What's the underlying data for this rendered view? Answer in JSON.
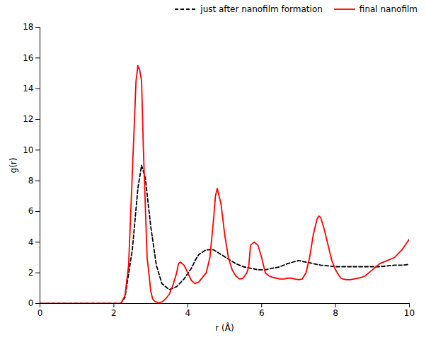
{
  "chart_data": {
    "type": "line",
    "xlabel": "r (Å)",
    "ylabel": "g(r)",
    "xlim": [
      0,
      10
    ],
    "ylim": [
      0,
      18
    ],
    "xticks": [
      0,
      2,
      4,
      6,
      8,
      10
    ],
    "yticks": [
      0,
      2,
      4,
      6,
      8,
      10,
      12,
      14,
      16,
      18
    ],
    "legend": "upper right",
    "grid": false,
    "series": [
      {
        "name": "just after nanofilm formation",
        "color": "#000000",
        "line_style": "dashed",
        "x": [
          0.0,
          2.15,
          2.2,
          2.3,
          2.5,
          2.65,
          2.75,
          2.85,
          3.0,
          3.15,
          3.3,
          3.5,
          3.7,
          3.9,
          4.1,
          4.2,
          4.3,
          4.5,
          4.7,
          4.9,
          5.1,
          5.3,
          5.5,
          5.7,
          5.9,
          6.1,
          6.3,
          6.5,
          6.7,
          6.85,
          7.0,
          7.2,
          7.4,
          7.6,
          7.8,
          8.0,
          8.2,
          8.4,
          8.6,
          8.8,
          9.0,
          9.2,
          9.4,
          9.6,
          9.8,
          10.0
        ],
        "values": [
          0.0,
          0.0,
          0.05,
          0.4,
          3.5,
          7.5,
          9.0,
          8.2,
          5.0,
          2.5,
          1.3,
          0.9,
          1.1,
          1.6,
          2.3,
          2.8,
          3.2,
          3.5,
          3.5,
          3.2,
          2.9,
          2.6,
          2.4,
          2.3,
          2.2,
          2.2,
          2.3,
          2.4,
          2.6,
          2.7,
          2.8,
          2.7,
          2.6,
          2.5,
          2.45,
          2.4,
          2.4,
          2.4,
          2.4,
          2.4,
          2.4,
          2.4,
          2.45,
          2.5,
          2.5,
          2.55
        ]
      },
      {
        "name": "final nanofilm",
        "color": "#ff0000",
        "line_style": "solid",
        "x": [
          0.0,
          2.15,
          2.2,
          2.3,
          2.4,
          2.5,
          2.6,
          2.65,
          2.7,
          2.75,
          2.8,
          2.9,
          3.0,
          3.05,
          3.1,
          3.15,
          3.2,
          3.3,
          3.4,
          3.5,
          3.6,
          3.7,
          3.75,
          3.8,
          3.9,
          4.0,
          4.1,
          4.2,
          4.3,
          4.5,
          4.6,
          4.7,
          4.75,
          4.8,
          4.9,
          5.0,
          5.1,
          5.2,
          5.3,
          5.4,
          5.5,
          5.6,
          5.65,
          5.7,
          5.8,
          5.9,
          6.0,
          6.05,
          6.1,
          6.2,
          6.3,
          6.4,
          6.5,
          6.6,
          6.7,
          6.8,
          6.9,
          7.0,
          7.1,
          7.2,
          7.3,
          7.4,
          7.5,
          7.55,
          7.6,
          7.7,
          7.8,
          7.9,
          8.0,
          8.1,
          8.15,
          8.2,
          8.3,
          8.4,
          8.5,
          8.6,
          8.7,
          8.8,
          8.9,
          9.0,
          9.1,
          9.2,
          9.4,
          9.6,
          9.8,
          10.0
        ],
        "values": [
          0.0,
          0.0,
          0.05,
          0.5,
          2.5,
          8.5,
          14.5,
          15.5,
          15.2,
          14.5,
          10.0,
          3.0,
          0.8,
          0.3,
          0.15,
          0.1,
          0.05,
          0.1,
          0.3,
          0.6,
          1.2,
          2.0,
          2.6,
          2.7,
          2.5,
          2.0,
          1.5,
          1.3,
          1.4,
          2.0,
          3.0,
          5.5,
          7.0,
          7.5,
          6.5,
          4.5,
          3.0,
          2.2,
          1.8,
          1.6,
          1.65,
          2.0,
          2.4,
          3.8,
          4.0,
          3.8,
          3.0,
          2.5,
          2.0,
          1.8,
          1.7,
          1.65,
          1.6,
          1.6,
          1.65,
          1.65,
          1.6,
          1.55,
          1.6,
          2.0,
          3.0,
          4.5,
          5.5,
          5.7,
          5.6,
          4.8,
          3.8,
          2.8,
          2.2,
          1.8,
          1.65,
          1.6,
          1.55,
          1.55,
          1.6,
          1.65,
          1.7,
          1.8,
          2.0,
          2.2,
          2.4,
          2.6,
          2.8,
          3.0,
          3.5,
          4.2
        ]
      }
    ]
  }
}
